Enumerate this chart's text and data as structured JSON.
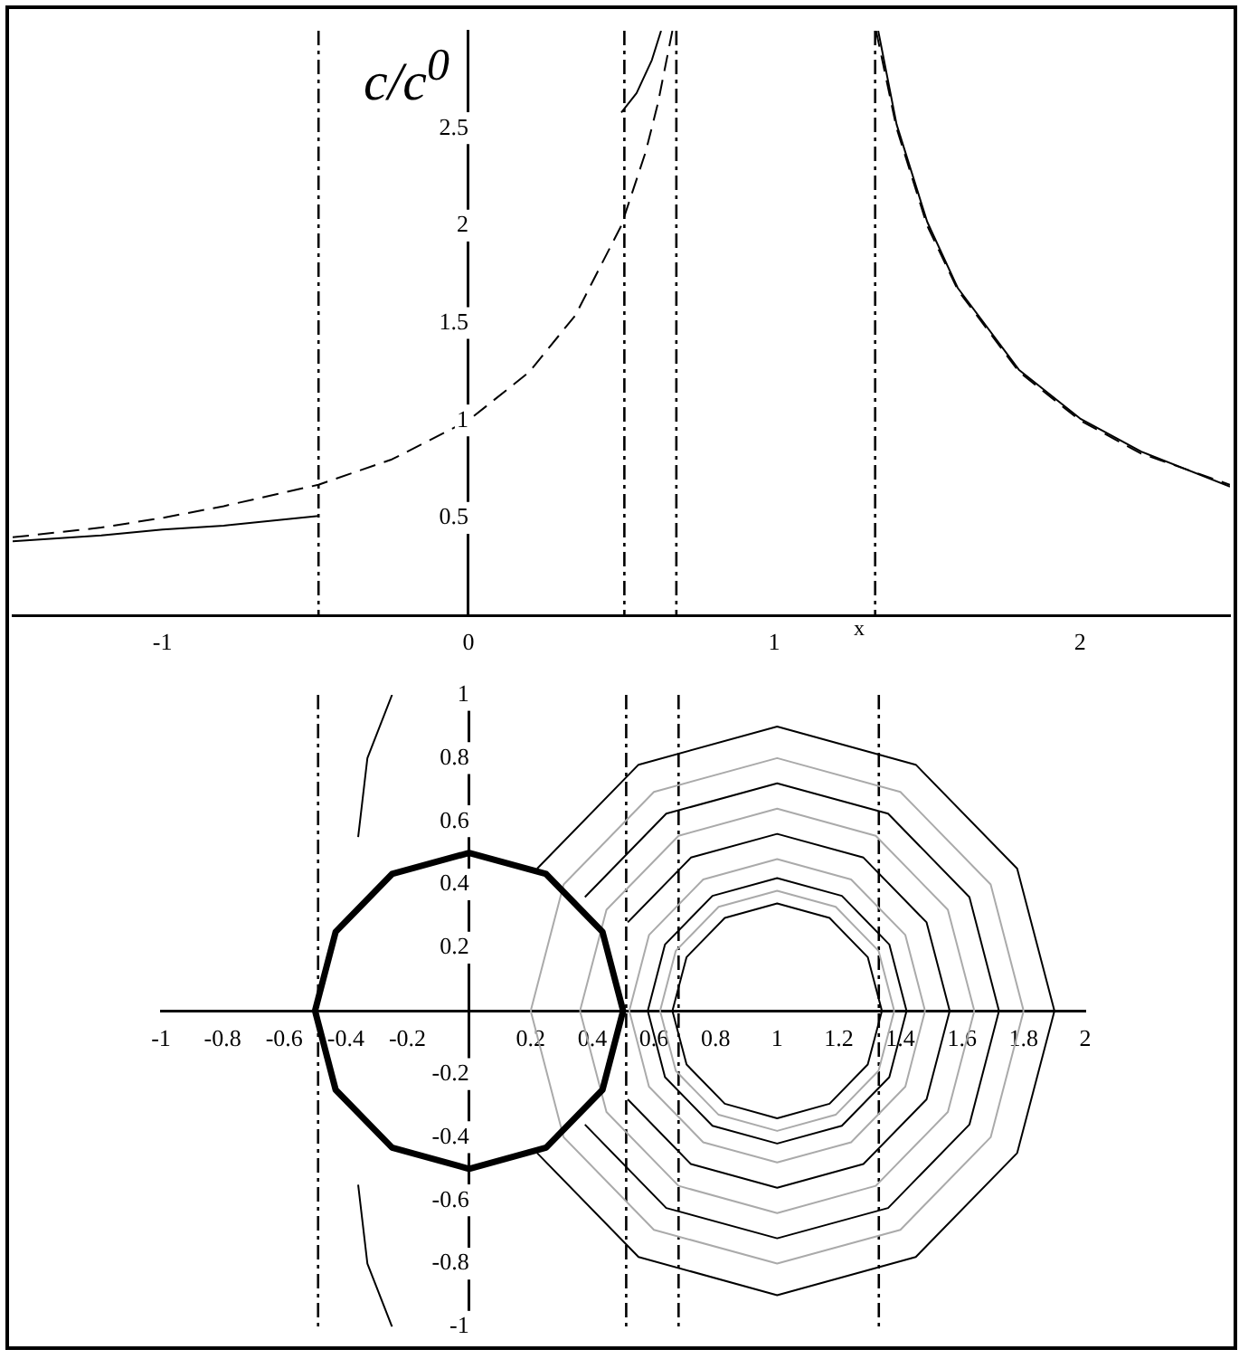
{
  "chart_data": [
    {
      "type": "line",
      "ylabel": "c/c$^{0}$",
      "xlabel": "x",
      "xlim": [
        -1.49,
        2.49
      ],
      "ylim": [
        0,
        3
      ],
      "xticks": [
        -1,
        0,
        1,
        2
      ],
      "yticks": [
        0.5,
        1,
        1.5,
        2,
        2.5
      ],
      "grid": false,
      "legend": false,
      "marker": "none",
      "ref_lines": [
        {
          "axis": "x",
          "value": -0.49
        },
        {
          "axis": "x",
          "value": 0.51
        },
        {
          "axis": "x",
          "value": 0.68
        },
        {
          "axis": "x",
          "value": 1.33
        }
      ],
      "series": [
        {
          "color": "#000000",
          "line_style": "solid",
          "x": [
            -1.49,
            -1.2,
            -1,
            -0.8,
            -0.49
          ],
          "values": [
            0.38,
            0.41,
            0.44,
            0.46,
            0.51
          ]
        },
        {
          "color": "#000000",
          "line_style": "solid",
          "x": [
            0.5,
            0.55,
            0.6,
            0.63
          ],
          "values": [
            2.58,
            2.68,
            2.85,
            3
          ]
        },
        {
          "color": "#000000",
          "line_style": "solid",
          "x": [
            1.34,
            1.4,
            1.5,
            1.6,
            1.8,
            2,
            2.2,
            2.49
          ],
          "values": [
            3,
            2.52,
            2.02,
            1.68,
            1.26,
            1.01,
            0.84,
            0.66
          ]
        },
        {
          "color": "#000000",
          "line_style": "dashed",
          "x": [
            -1.49,
            -1.2,
            -1,
            -0.8,
            -0.49,
            -0.25,
            0,
            0.2,
            0.35,
            0.5,
            0.58,
            0.62,
            0.667
          ],
          "values": [
            0.4,
            0.45,
            0.5,
            0.56,
            0.67,
            0.8,
            1,
            1.25,
            1.54,
            2,
            2.38,
            2.63,
            3
          ]
        },
        {
          "color": "#000000",
          "line_style": "dashed",
          "x": [
            1.333,
            1.4,
            1.5,
            1.6,
            1.8,
            2,
            2.2,
            2.49
          ],
          "values": [
            3,
            2.5,
            2,
            1.67,
            1.25,
            1,
            0.83,
            0.67
          ]
        }
      ]
    },
    {
      "type": "line",
      "xlim": [
        -1,
        2
      ],
      "ylim": [
        -1,
        1
      ],
      "xticks": [
        -1,
        -0.8,
        -0.6,
        -0.4,
        -0.2,
        0.2,
        0.4,
        0.6,
        0.8,
        1,
        1.2,
        1.4,
        1.6,
        1.8,
        2
      ],
      "yticks": [
        -1,
        -0.8,
        -0.6,
        -0.4,
        -0.2,
        0.2,
        0.4,
        0.6,
        0.8,
        1
      ],
      "grid": false,
      "legend": false,
      "marker": "none",
      "ref_lines": [
        {
          "axis": "x",
          "value": -0.49
        },
        {
          "axis": "x",
          "value": 0.51
        },
        {
          "axis": "x",
          "value": 0.68
        },
        {
          "axis": "x",
          "value": 1.33
        }
      ],
      "series": [
        {
          "color": "#aaaaaa",
          "x": [
            1.38,
            1.329,
            1.19,
            1,
            0.81,
            0.671,
            0.62
          ],
          "values": [
            0,
            0.19,
            0.329,
            0.38,
            0.329,
            0.19,
            0
          ]
        },
        {
          "color": "#aaaaaa",
          "x": [
            1.38,
            1.329,
            1.19,
            1,
            0.81,
            0.671,
            0.62
          ],
          "values": [
            0,
            -0.19,
            -0.329,
            -0.38,
            -0.329,
            -0.19,
            0
          ]
        },
        {
          "color": "#aaaaaa",
          "x": [
            1.48,
            1.416,
            1.24,
            1,
            0.76,
            0.584,
            0.52
          ],
          "values": [
            0,
            0.24,
            0.416,
            0.48,
            0.416,
            0.24,
            0
          ]
        },
        {
          "color": "#aaaaaa",
          "x": [
            1.48,
            1.416,
            1.24,
            1,
            0.76,
            0.584,
            0.52
          ],
          "values": [
            0,
            -0.24,
            -0.416,
            -0.48,
            -0.416,
            -0.24,
            0
          ]
        },
        {
          "color": "#aaaaaa",
          "x": [
            1.64,
            1.554,
            1.32,
            1,
            0.68,
            0.446,
            0.36
          ],
          "values": [
            0,
            0.32,
            0.554,
            0.64,
            0.554,
            0.32,
            0
          ]
        },
        {
          "color": "#aaaaaa",
          "x": [
            1.64,
            1.554,
            1.32,
            1,
            0.68,
            0.446,
            0.36
          ],
          "values": [
            0,
            -0.32,
            -0.554,
            -0.64,
            -0.554,
            -0.32,
            0
          ]
        },
        {
          "color": "#aaaaaa",
          "x": [
            1.8,
            1.693,
            1.4,
            1,
            0.6,
            0.307,
            0.2
          ],
          "values": [
            0,
            0.4,
            0.693,
            0.8,
            0.693,
            0.4,
            0
          ]
        },
        {
          "color": "#aaaaaa",
          "x": [
            1.8,
            1.693,
            1.4,
            1,
            0.6,
            0.307,
            0.2
          ],
          "values": [
            0,
            -0.4,
            -0.693,
            -0.8,
            -0.693,
            -0.4,
            0
          ]
        },
        {
          "color": "#000000",
          "x": [
            1.34,
            1.294,
            1.17,
            1,
            0.83,
            0.706,
            0.66
          ],
          "values": [
            0,
            0.17,
            0.294,
            0.34,
            0.294,
            0.17,
            0
          ]
        },
        {
          "color": "#000000",
          "x": [
            1.34,
            1.294,
            1.17,
            1,
            0.83,
            0.706,
            0.66
          ],
          "values": [
            0,
            -0.17,
            -0.294,
            -0.34,
            -0.294,
            -0.17,
            0
          ]
        },
        {
          "color": "#000000",
          "x": [
            1.42,
            1.364,
            1.21,
            1,
            0.79,
            0.636,
            0.58
          ],
          "values": [
            0,
            0.21,
            0.364,
            0.42,
            0.364,
            0.21,
            0
          ]
        },
        {
          "color": "#000000",
          "x": [
            1.42,
            1.364,
            1.21,
            1,
            0.79,
            0.636,
            0.58
          ],
          "values": [
            0,
            -0.21,
            -0.364,
            -0.42,
            -0.364,
            -0.21,
            0
          ]
        },
        {
          "color": "#000000",
          "x": [
            0.515,
            0.72,
            1,
            1.28,
            1.485,
            1.56
          ],
          "values": [
            0.28,
            0.485,
            0.56,
            0.485,
            0.28,
            0
          ]
        },
        {
          "color": "#000000",
          "x": [
            0.515,
            0.72,
            1,
            1.28,
            1.485,
            1.56
          ],
          "values": [
            -0.28,
            -0.485,
            -0.56,
            -0.485,
            -0.28,
            0
          ]
        },
        {
          "color": "#000000",
          "x": [
            0.376,
            0.64,
            1,
            1.36,
            1.624,
            1.72
          ],
          "values": [
            0.36,
            0.624,
            0.72,
            0.624,
            0.36,
            0
          ]
        },
        {
          "color": "#000000",
          "x": [
            0.376,
            0.64,
            1,
            1.36,
            1.624,
            1.72
          ],
          "values": [
            -0.36,
            -0.624,
            -0.72,
            -0.624,
            -0.36,
            0
          ]
        },
        {
          "color": "#000000",
          "x": [
            0.221,
            0.55,
            1,
            1.45,
            1.779,
            1.9
          ],
          "values": [
            0.45,
            0.779,
            0.9,
            0.779,
            0.45,
            0
          ]
        },
        {
          "color": "#000000",
          "x": [
            0.221,
            0.55,
            1,
            1.45,
            1.779,
            1.9
          ],
          "values": [
            -0.45,
            -0.779,
            -0.9,
            -0.779,
            -0.45,
            0
          ]
        },
        {
          "color": "#000000",
          "x": [
            -0.25,
            -0.33,
            -0.36
          ],
          "values": [
            1,
            0.8,
            0.55
          ]
        },
        {
          "color": "#000000",
          "x": [
            -0.25,
            -0.33,
            -0.36
          ],
          "values": [
            -1,
            -0.8,
            -0.55
          ]
        },
        {
          "color": "#000000",
          "x": [
            0.5,
            0.433,
            0.25,
            0,
            -0.25,
            -0.433,
            -0.5
          ],
          "values": [
            0,
            0.25,
            0.433,
            0.5,
            0.433,
            0.25,
            0
          ]
        },
        {
          "color": "#000000",
          "x": [
            0.5,
            0.433,
            0.25,
            0,
            -0.25,
            -0.433,
            -0.5
          ],
          "values": [
            0,
            -0.25,
            -0.433,
            -0.5,
            -0.433,
            -0.25,
            0
          ]
        }
      ]
    }
  ]
}
